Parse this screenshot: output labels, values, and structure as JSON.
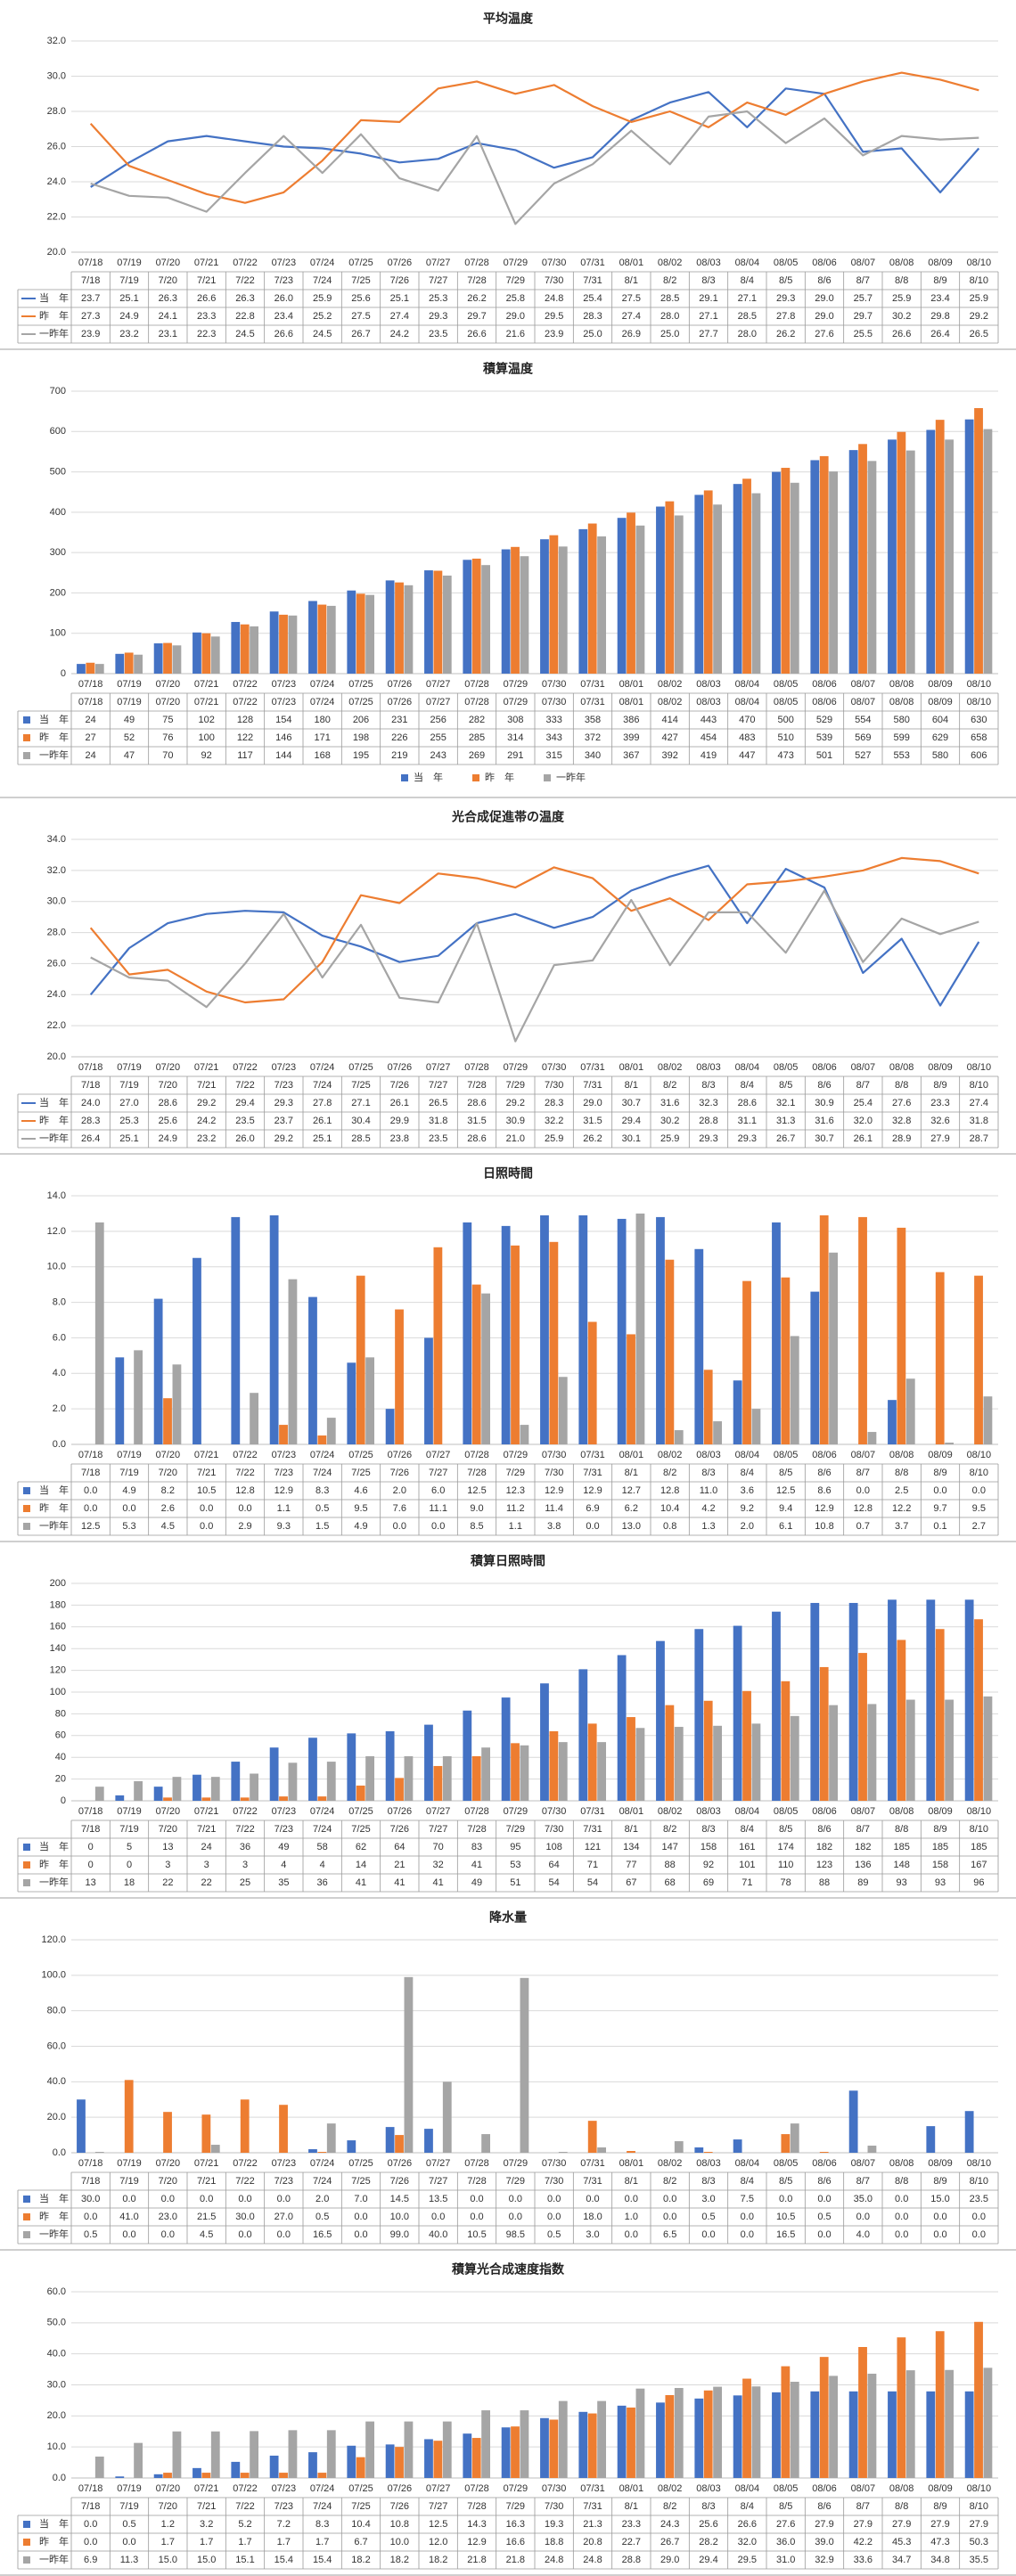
{
  "chart_data": [
    {
      "type": "line",
      "title": "平均温度",
      "categories": [
        "07/18",
        "07/19",
        "07/20",
        "07/21",
        "07/22",
        "07/23",
        "07/24",
        "07/25",
        "07/26",
        "07/27",
        "07/28",
        "07/29",
        "07/30",
        "07/31",
        "08/01",
        "08/02",
        "08/03",
        "08/04",
        "08/05",
        "08/06",
        "08/07",
        "08/08",
        "08/09",
        "08/10"
      ],
      "table_headers": [
        "7/18",
        "7/19",
        "7/20",
        "7/21",
        "7/22",
        "7/23",
        "7/24",
        "7/25",
        "7/26",
        "7/27",
        "7/28",
        "7/29",
        "7/30",
        "7/31",
        "8/1",
        "8/2",
        "8/3",
        "8/4",
        "8/5",
        "8/6",
        "8/7",
        "8/8",
        "8/9",
        "8/10"
      ],
      "ylim": [
        20.0,
        32.0
      ],
      "yticks": [
        "20.0",
        "22.0",
        "24.0",
        "26.0",
        "28.0",
        "30.0",
        "32.0"
      ],
      "decimals": 1,
      "legend": "none",
      "series": [
        {
          "name": "当　年",
          "color": "#4472C4",
          "values": [
            23.7,
            25.1,
            26.3,
            26.6,
            26.3,
            26.0,
            25.9,
            25.6,
            25.1,
            25.3,
            26.2,
            25.8,
            24.8,
            25.4,
            27.5,
            28.5,
            29.1,
            27.1,
            29.3,
            29.0,
            25.7,
            25.9,
            23.4,
            25.9
          ]
        },
        {
          "name": "昨　年",
          "color": "#ED7D31",
          "values": [
            27.3,
            24.9,
            24.1,
            23.3,
            22.8,
            23.4,
            25.2,
            27.5,
            27.4,
            29.3,
            29.7,
            29.0,
            29.5,
            28.3,
            27.4,
            28.0,
            27.1,
            28.5,
            27.8,
            29.0,
            29.7,
            30.2,
            29.8,
            29.2
          ]
        },
        {
          "name": "一昨年",
          "color": "#A5A5A5",
          "values": [
            23.9,
            23.2,
            23.1,
            22.3,
            24.5,
            26.6,
            24.5,
            26.7,
            24.2,
            23.5,
            26.6,
            21.6,
            23.9,
            25.0,
            26.9,
            25.0,
            27.7,
            28.0,
            26.2,
            27.6,
            25.5,
            26.6,
            26.4,
            26.5
          ]
        }
      ]
    },
    {
      "type": "bar",
      "title": "積算温度",
      "categories": [
        "07/18",
        "07/19",
        "07/20",
        "07/21",
        "07/22",
        "07/23",
        "07/24",
        "07/25",
        "07/26",
        "07/27",
        "07/28",
        "07/29",
        "07/30",
        "07/31",
        "08/01",
        "08/02",
        "08/03",
        "08/04",
        "08/05",
        "08/06",
        "08/07",
        "08/08",
        "08/09",
        "08/10"
      ],
      "table_headers": [
        "07/18",
        "07/19",
        "07/20",
        "07/21",
        "07/22",
        "07/23",
        "07/24",
        "07/25",
        "07/26",
        "07/27",
        "07/28",
        "07/29",
        "07/30",
        "07/31",
        "08/01",
        "08/02",
        "08/03",
        "08/04",
        "08/05",
        "08/06",
        "08/07",
        "08/08",
        "08/09",
        "08/10"
      ],
      "ylim": [
        0,
        700
      ],
      "yticks": [
        "0",
        "100",
        "200",
        "300",
        "400",
        "500",
        "600",
        "700"
      ],
      "decimals": 0,
      "legend": "bottom",
      "series": [
        {
          "name": "当　年",
          "color": "#4472C4",
          "values": [
            24,
            49,
            75,
            102,
            128,
            154,
            180,
            206,
            231,
            256,
            282,
            308,
            333,
            358,
            386,
            414,
            443,
            470,
            500,
            529,
            554,
            580,
            604,
            630
          ]
        },
        {
          "name": "昨　年",
          "color": "#ED7D31",
          "values": [
            27,
            52,
            76,
            100,
            122,
            146,
            171,
            198,
            226,
            255,
            285,
            314,
            343,
            372,
            399,
            427,
            454,
            483,
            510,
            539,
            569,
            599,
            629,
            658
          ]
        },
        {
          "name": "一昨年",
          "color": "#A5A5A5",
          "values": [
            24,
            47,
            70,
            92,
            117,
            144,
            168,
            195,
            219,
            243,
            269,
            291,
            315,
            340,
            367,
            392,
            419,
            447,
            473,
            501,
            527,
            553,
            580,
            606
          ]
        }
      ]
    },
    {
      "type": "line",
      "title": "光合成促進帯の温度",
      "categories": [
        "07/18",
        "07/19",
        "07/20",
        "07/21",
        "07/22",
        "07/23",
        "07/24",
        "07/25",
        "07/26",
        "07/27",
        "07/28",
        "07/29",
        "07/30",
        "07/31",
        "08/01",
        "08/02",
        "08/03",
        "08/04",
        "08/05",
        "08/06",
        "08/07",
        "08/08",
        "08/09",
        "08/10"
      ],
      "table_headers": [
        "7/18",
        "7/19",
        "7/20",
        "7/21",
        "7/22",
        "7/23",
        "7/24",
        "7/25",
        "7/26",
        "7/27",
        "7/28",
        "7/29",
        "7/30",
        "7/31",
        "8/1",
        "8/2",
        "8/3",
        "8/4",
        "8/5",
        "8/6",
        "8/7",
        "8/8",
        "8/9",
        "8/10"
      ],
      "ylim": [
        20.0,
        34.0
      ],
      "yticks": [
        "20.0",
        "22.0",
        "24.0",
        "26.0",
        "28.0",
        "30.0",
        "32.0",
        "34.0"
      ],
      "decimals": 1,
      "legend": "none",
      "series": [
        {
          "name": "当　年",
          "color": "#4472C4",
          "values": [
            24.0,
            27.0,
            28.6,
            29.2,
            29.4,
            29.3,
            27.8,
            27.1,
            26.1,
            26.5,
            28.6,
            29.2,
            28.3,
            29.0,
            30.7,
            31.6,
            32.3,
            28.6,
            32.1,
            30.9,
            25.4,
            27.6,
            23.3,
            27.4
          ]
        },
        {
          "name": "昨　年",
          "color": "#ED7D31",
          "values": [
            28.3,
            25.3,
            25.6,
            24.2,
            23.5,
            23.7,
            26.1,
            30.4,
            29.9,
            31.8,
            31.5,
            30.9,
            32.2,
            31.5,
            29.4,
            30.2,
            28.8,
            31.1,
            31.3,
            31.6,
            32.0,
            32.8,
            32.6,
            31.8
          ]
        },
        {
          "name": "一昨年",
          "color": "#A5A5A5",
          "values": [
            26.4,
            25.1,
            24.9,
            23.2,
            26.0,
            29.2,
            25.1,
            28.5,
            23.8,
            23.5,
            28.6,
            21.0,
            25.9,
            26.2,
            30.1,
            25.9,
            29.3,
            29.3,
            26.7,
            30.7,
            26.1,
            28.9,
            27.9,
            28.7
          ]
        }
      ]
    },
    {
      "type": "bar",
      "title": "日照時間",
      "categories": [
        "07/18",
        "07/19",
        "07/20",
        "07/21",
        "07/22",
        "07/23",
        "07/24",
        "07/25",
        "07/26",
        "07/27",
        "07/28",
        "07/29",
        "07/30",
        "07/31",
        "08/01",
        "08/02",
        "08/03",
        "08/04",
        "08/05",
        "08/06",
        "08/07",
        "08/08",
        "08/09",
        "08/10"
      ],
      "table_headers": [
        "7/18",
        "7/19",
        "7/20",
        "7/21",
        "7/22",
        "7/23",
        "7/24",
        "7/25",
        "7/26",
        "7/27",
        "7/28",
        "7/29",
        "7/30",
        "7/31",
        "8/1",
        "8/2",
        "8/3",
        "8/4",
        "8/5",
        "8/6",
        "8/7",
        "8/8",
        "8/9",
        "8/10"
      ],
      "ylim": [
        0.0,
        14.0
      ],
      "yticks": [
        "0.0",
        "2.0",
        "4.0",
        "6.0",
        "8.0",
        "10.0",
        "12.0",
        "14.0"
      ],
      "decimals": 1,
      "legend": "none",
      "series": [
        {
          "name": "当　年",
          "color": "#4472C4",
          "values": [
            0.0,
            4.9,
            8.2,
            10.5,
            12.8,
            12.9,
            8.3,
            4.6,
            2.0,
            6.0,
            12.5,
            12.3,
            12.9,
            12.9,
            12.7,
            12.8,
            11.0,
            3.6,
            12.5,
            8.6,
            0.0,
            2.5,
            0.0,
            0.0
          ]
        },
        {
          "name": "昨　年",
          "color": "#ED7D31",
          "values": [
            0.0,
            0.0,
            2.6,
            0.0,
            0.0,
            1.1,
            0.5,
            9.5,
            7.6,
            11.1,
            9.0,
            11.2,
            11.4,
            6.9,
            6.2,
            10.4,
            4.2,
            9.2,
            9.4,
            12.9,
            12.8,
            12.2,
            9.7,
            9.5
          ]
        },
        {
          "name": "一昨年",
          "color": "#A5A5A5",
          "values": [
            12.5,
            5.3,
            4.5,
            0.0,
            2.9,
            9.3,
            1.5,
            4.9,
            0.0,
            0.0,
            8.5,
            1.1,
            3.8,
            0.0,
            13.0,
            0.8,
            1.3,
            2.0,
            6.1,
            10.8,
            0.7,
            3.7,
            0.1,
            2.7
          ]
        }
      ]
    },
    {
      "type": "bar",
      "title": "積算日照時間",
      "categories": [
        "07/18",
        "07/19",
        "07/20",
        "07/21",
        "07/22",
        "07/23",
        "07/24",
        "07/25",
        "07/26",
        "07/27",
        "07/28",
        "07/29",
        "07/30",
        "07/31",
        "08/01",
        "08/02",
        "08/03",
        "08/04",
        "08/05",
        "08/06",
        "08/07",
        "08/08",
        "08/09",
        "08/10"
      ],
      "table_headers": [
        "7/18",
        "7/19",
        "7/20",
        "7/21",
        "7/22",
        "7/23",
        "7/24",
        "7/25",
        "7/26",
        "7/27",
        "7/28",
        "7/29",
        "7/30",
        "7/31",
        "8/1",
        "8/2",
        "8/3",
        "8/4",
        "8/5",
        "8/6",
        "8/7",
        "8/8",
        "8/9",
        "8/10"
      ],
      "ylim": [
        0,
        200
      ],
      "yticks": [
        "0",
        "20",
        "40",
        "60",
        "80",
        "100",
        "120",
        "140",
        "160",
        "180",
        "200"
      ],
      "decimals": 0,
      "legend": "none",
      "series": [
        {
          "name": "当　年",
          "color": "#4472C4",
          "values": [
            0,
            5,
            13,
            24,
            36,
            49,
            58,
            62,
            64,
            70,
            83,
            95,
            108,
            121,
            134,
            147,
            158,
            161,
            174,
            182,
            182,
            185,
            185,
            185
          ]
        },
        {
          "name": "昨　年",
          "color": "#ED7D31",
          "values": [
            0,
            0,
            3,
            3,
            3,
            4,
            4,
            14,
            21,
            32,
            41,
            53,
            64,
            71,
            77,
            88,
            92,
            101,
            110,
            123,
            136,
            148,
            158,
            167
          ]
        },
        {
          "name": "一昨年",
          "color": "#A5A5A5",
          "values": [
            13,
            18,
            22,
            22,
            25,
            35,
            36,
            41,
            41,
            41,
            49,
            51,
            54,
            54,
            67,
            68,
            69,
            71,
            78,
            88,
            89,
            93,
            93,
            96
          ]
        }
      ]
    },
    {
      "type": "bar",
      "title": "降水量",
      "categories": [
        "07/18",
        "07/19",
        "07/20",
        "07/21",
        "07/22",
        "07/23",
        "07/24",
        "07/25",
        "07/26",
        "07/27",
        "07/28",
        "07/29",
        "07/30",
        "07/31",
        "08/01",
        "08/02",
        "08/03",
        "08/04",
        "08/05",
        "08/06",
        "08/07",
        "08/08",
        "08/09",
        "08/10"
      ],
      "table_headers": [
        "7/18",
        "7/19",
        "7/20",
        "7/21",
        "7/22",
        "7/23",
        "7/24",
        "7/25",
        "7/26",
        "7/27",
        "7/28",
        "7/29",
        "7/30",
        "7/31",
        "8/1",
        "8/2",
        "8/3",
        "8/4",
        "8/5",
        "8/6",
        "8/7",
        "8/8",
        "8/9",
        "8/10"
      ],
      "ylim": [
        0.0,
        120.0
      ],
      "yticks": [
        "0.0",
        "20.0",
        "40.0",
        "60.0",
        "80.0",
        "100.0",
        "120.0"
      ],
      "decimals": 1,
      "legend": "none",
      "series": [
        {
          "name": "当　年",
          "color": "#4472C4",
          "values": [
            30.0,
            0.0,
            0.0,
            0.0,
            0.0,
            0.0,
            2.0,
            7.0,
            14.5,
            13.5,
            0.0,
            0.0,
            0.0,
            0.0,
            0.0,
            0.0,
            3.0,
            7.5,
            0.0,
            0.0,
            35.0,
            0.0,
            15.0,
            23.5
          ]
        },
        {
          "name": "昨　年",
          "color": "#ED7D31",
          "values": [
            0.0,
            41.0,
            23.0,
            21.5,
            30.0,
            27.0,
            0.5,
            0.0,
            10.0,
            0.0,
            0.0,
            0.0,
            0.0,
            18.0,
            1.0,
            0.0,
            0.5,
            0.0,
            10.5,
            0.5,
            0.0,
            0.0,
            0.0,
            0.0
          ]
        },
        {
          "name": "一昨年",
          "color": "#A5A5A5",
          "values": [
            0.5,
            0.0,
            0.0,
            4.5,
            0.0,
            0.0,
            16.5,
            0.0,
            99.0,
            40.0,
            10.5,
            98.5,
            0.5,
            3.0,
            0.0,
            6.5,
            0.0,
            0.0,
            16.5,
            0.0,
            4.0,
            0.0,
            0.0,
            0.0
          ]
        }
      ]
    },
    {
      "type": "bar",
      "title": "積算光合成速度指数",
      "categories": [
        "07/18",
        "07/19",
        "07/20",
        "07/21",
        "07/22",
        "07/23",
        "07/24",
        "07/25",
        "07/26",
        "07/27",
        "07/28",
        "07/29",
        "07/30",
        "07/31",
        "08/01",
        "08/02",
        "08/03",
        "08/04",
        "08/05",
        "08/06",
        "08/07",
        "08/08",
        "08/09",
        "08/10"
      ],
      "table_headers": [
        "7/18",
        "7/19",
        "7/20",
        "7/21",
        "7/22",
        "7/23",
        "7/24",
        "7/25",
        "7/26",
        "7/27",
        "7/28",
        "7/29",
        "7/30",
        "7/31",
        "8/1",
        "8/2",
        "8/3",
        "8/4",
        "8/5",
        "8/6",
        "8/7",
        "8/8",
        "8/9",
        "8/10"
      ],
      "ylim": [
        0.0,
        60.0
      ],
      "yticks": [
        "0.0",
        "10.0",
        "20.0",
        "30.0",
        "40.0",
        "50.0",
        "60.0"
      ],
      "decimals": 1,
      "legend": "none",
      "series": [
        {
          "name": "当　年",
          "color": "#4472C4",
          "values": [
            0.0,
            0.5,
            1.2,
            3.2,
            5.2,
            7.2,
            8.3,
            10.4,
            10.8,
            12.5,
            14.3,
            16.3,
            19.3,
            21.3,
            23.3,
            24.3,
            25.6,
            26.6,
            27.6,
            27.9,
            27.9,
            27.9,
            27.9,
            27.9
          ]
        },
        {
          "name": "昨　年",
          "color": "#ED7D31",
          "values": [
            0.0,
            0.0,
            1.7,
            1.7,
            1.7,
            1.7,
            1.7,
            6.7,
            10.0,
            12.0,
            12.9,
            16.6,
            18.8,
            20.8,
            22.7,
            26.7,
            28.2,
            32.0,
            36.0,
            39.0,
            42.2,
            45.3,
            47.3,
            50.3
          ]
        },
        {
          "name": "一昨年",
          "color": "#A5A5A5",
          "values": [
            6.9,
            11.3,
            15.0,
            15.0,
            15.1,
            15.4,
            15.4,
            18.2,
            18.2,
            18.2,
            21.8,
            21.8,
            24.8,
            24.8,
            28.8,
            29.0,
            29.4,
            29.5,
            31.0,
            32.9,
            33.6,
            34.7,
            34.8,
            35.5
          ]
        }
      ]
    }
  ]
}
